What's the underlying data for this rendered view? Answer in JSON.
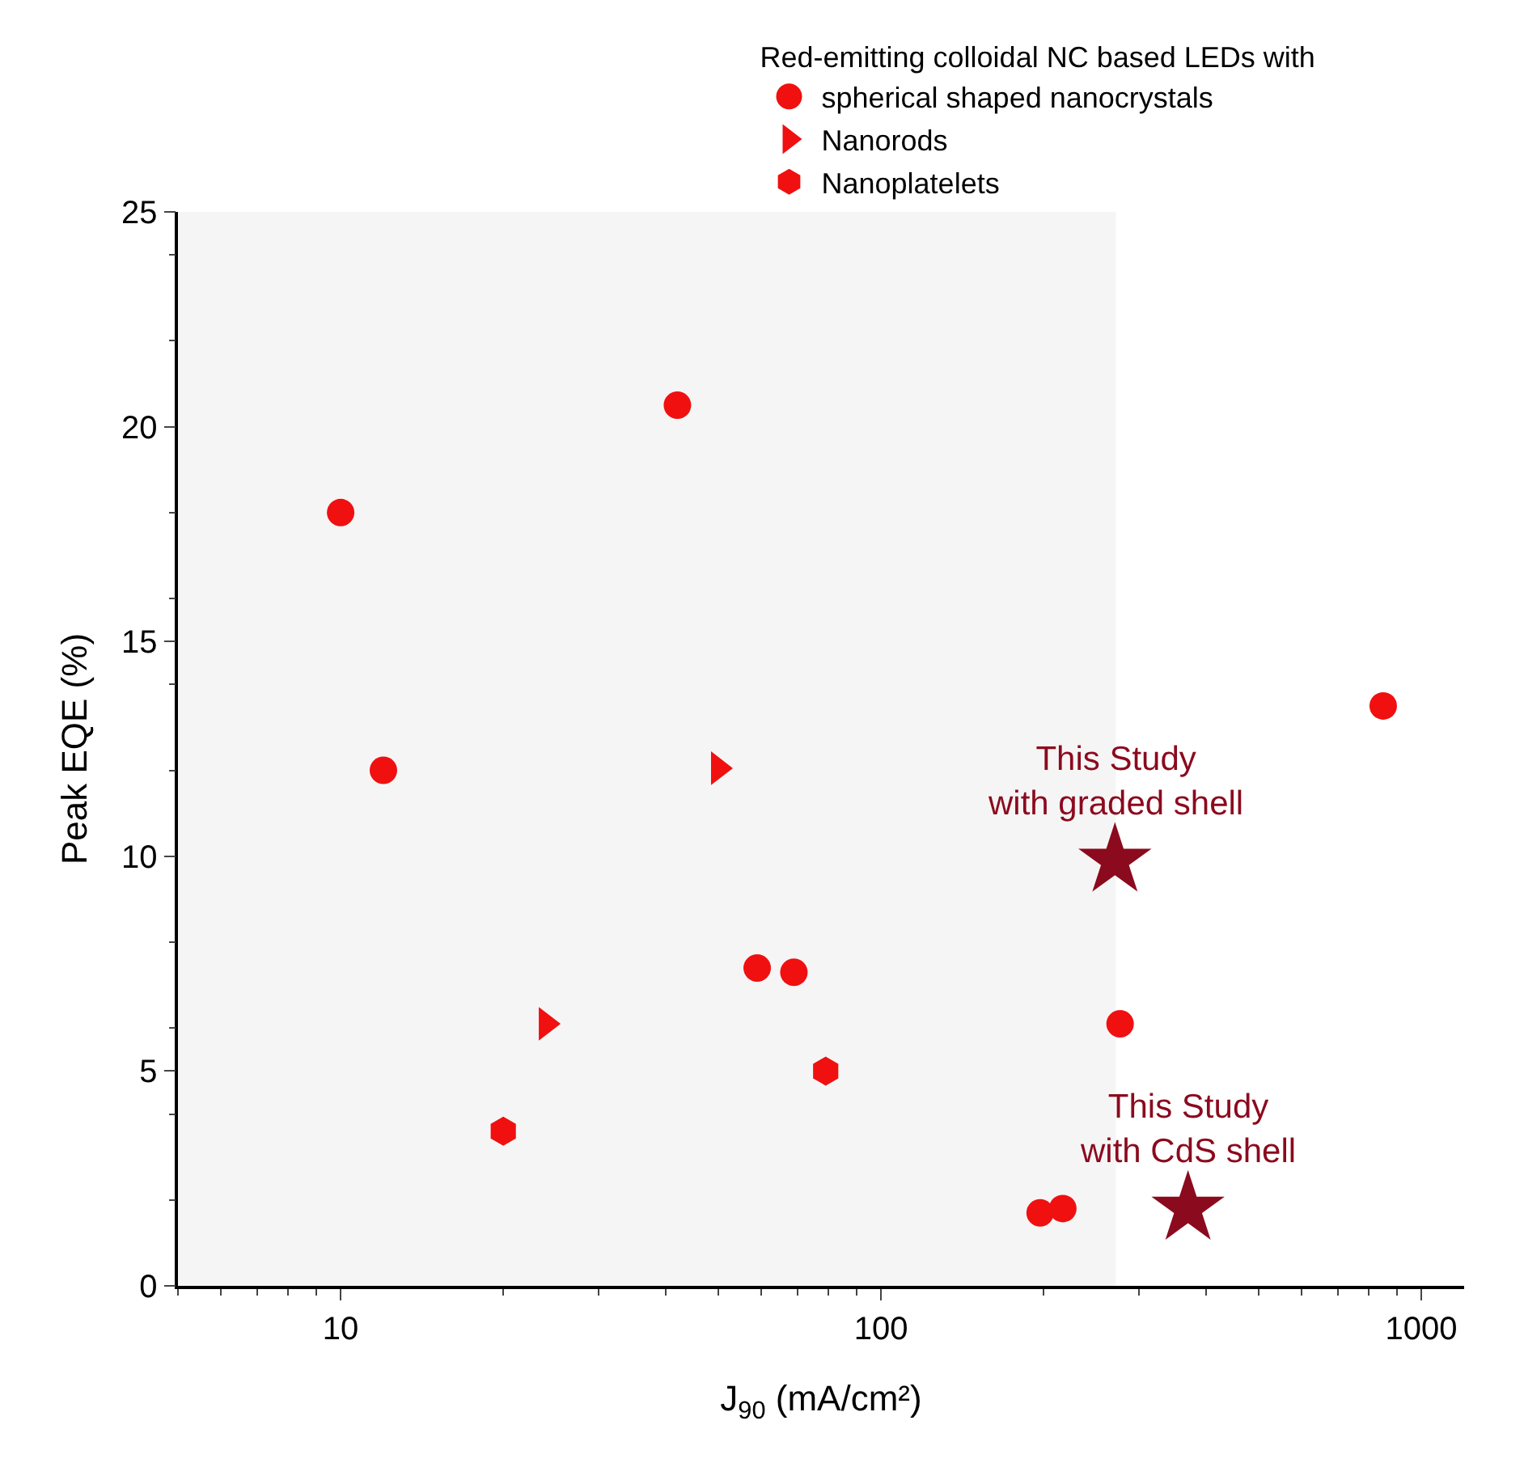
{
  "chart_data": {
    "type": "scatter",
    "xlabel": "J$_{90}$ (mA/cm²)",
    "ylabel": "Peak EQE (%)",
    "legend_title": "Red-emitting colloidal NC based LEDs with",
    "legend": "top",
    "log": "x",
    "grid": false,
    "xlim": [
      5,
      1200
    ],
    "xticks": [
      10,
      100,
      1000
    ],
    "ylim": [
      0,
      25
    ],
    "yticks": [
      0,
      5,
      10,
      15,
      20,
      25
    ],
    "bands": [
      {
        "axis": "x",
        "from": 5,
        "to": 272,
        "color": "#f5f5f5"
      }
    ],
    "series": [
      {
        "name": "spherical shaped nanocrystals",
        "color": "#f01010",
        "marker": "circle",
        "x": [
          10,
          12,
          42,
          59,
          69,
          197,
          217,
          277,
          850
        ],
        "values": [
          18,
          12,
          20.5,
          7.4,
          7.3,
          1.7,
          1.8,
          6.1,
          13.5
        ]
      },
      {
        "name": "Nanorods",
        "color": "#f01010",
        "marker": "triangle",
        "x": [
          24,
          50
        ],
        "values": [
          6.1,
          12.05
        ]
      },
      {
        "name": "Nanoplatelets",
        "color": "#f01010",
        "x": [
          20,
          79
        ],
        "values": [
          3.6,
          5.0
        ]
      },
      {
        "color": "#8b0a1e",
        "marker": "star",
        "x": [
          271,
          370
        ],
        "values": [
          9.9,
          1.8
        ]
      }
    ],
    "annotations": [
      {
        "text": "This Study\nwith graded shell",
        "x": 271,
        "y": 9.9
      },
      {
        "text": "This Study\nwith CdS shell",
        "x": 370,
        "y": 1.8
      }
    ]
  }
}
